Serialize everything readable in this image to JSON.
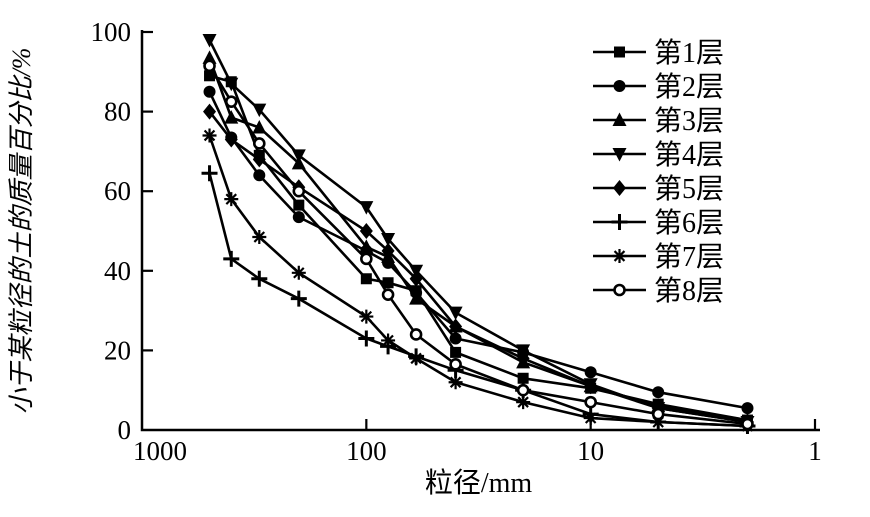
{
  "figure": {
    "background_color": "#ffffff",
    "line_color": "#000000",
    "text_color": "#000000"
  },
  "chart_data": {
    "type": "line",
    "title": "",
    "xlabel": "粒径/mm",
    "ylabel": "小于某粒径的土的质量百分比/%",
    "x_scale": "log-reversed",
    "xlim": [
      1000,
      1
    ],
    "ylim": [
      0,
      100
    ],
    "x_ticks": [
      1000,
      100,
      10,
      1
    ],
    "y_ticks": [
      0,
      20,
      40,
      60,
      80,
      100
    ],
    "grid": "off",
    "legend_position": "upper-right",
    "x": [
      500,
      400,
      300,
      200,
      100,
      80,
      60,
      40,
      20,
      10,
      5,
      2
    ],
    "series": [
      {
        "name": "第1层",
        "marker": "square",
        "values": [
          89,
          87.5,
          69,
          56.5,
          38,
          37,
          35,
          19.5,
          13,
          10.5,
          6.5,
          2.5
        ]
      },
      {
        "name": "第2层",
        "marker": "circle",
        "values": [
          85,
          73.5,
          64,
          53.5,
          45,
          42,
          34.5,
          23,
          19.5,
          14.5,
          9.5,
          5.5
        ]
      },
      {
        "name": "第3层",
        "marker": "triangle-up",
        "values": [
          93.5,
          78.5,
          76,
          67,
          46,
          43.5,
          33,
          26,
          17,
          11,
          6,
          2.5
        ]
      },
      {
        "name": "第4层",
        "marker": "triangle-down",
        "values": [
          98,
          87,
          80.5,
          69,
          56,
          48,
          40,
          29.5,
          20,
          11.5,
          5.5,
          2
        ]
      },
      {
        "name": "第5层",
        "marker": "diamond",
        "values": [
          80,
          73,
          68,
          61,
          50,
          45,
          38,
          26,
          18,
          11,
          5.5,
          2
        ]
      },
      {
        "name": "第6层",
        "marker": "plus",
        "values": [
          64.5,
          43,
          38,
          33,
          23,
          21,
          18.5,
          15,
          10,
          4,
          2,
          1
        ]
      },
      {
        "name": "第7层",
        "marker": "asterisk",
        "values": [
          74,
          58,
          48.5,
          39.5,
          28.5,
          22.5,
          18,
          12,
          7,
          3,
          2,
          1
        ]
      },
      {
        "name": "第8层",
        "marker": "circle-open",
        "values": [
          91.5,
          82.5,
          72,
          60,
          43,
          34,
          24,
          16.5,
          10,
          7,
          4,
          1.5
        ]
      }
    ]
  }
}
